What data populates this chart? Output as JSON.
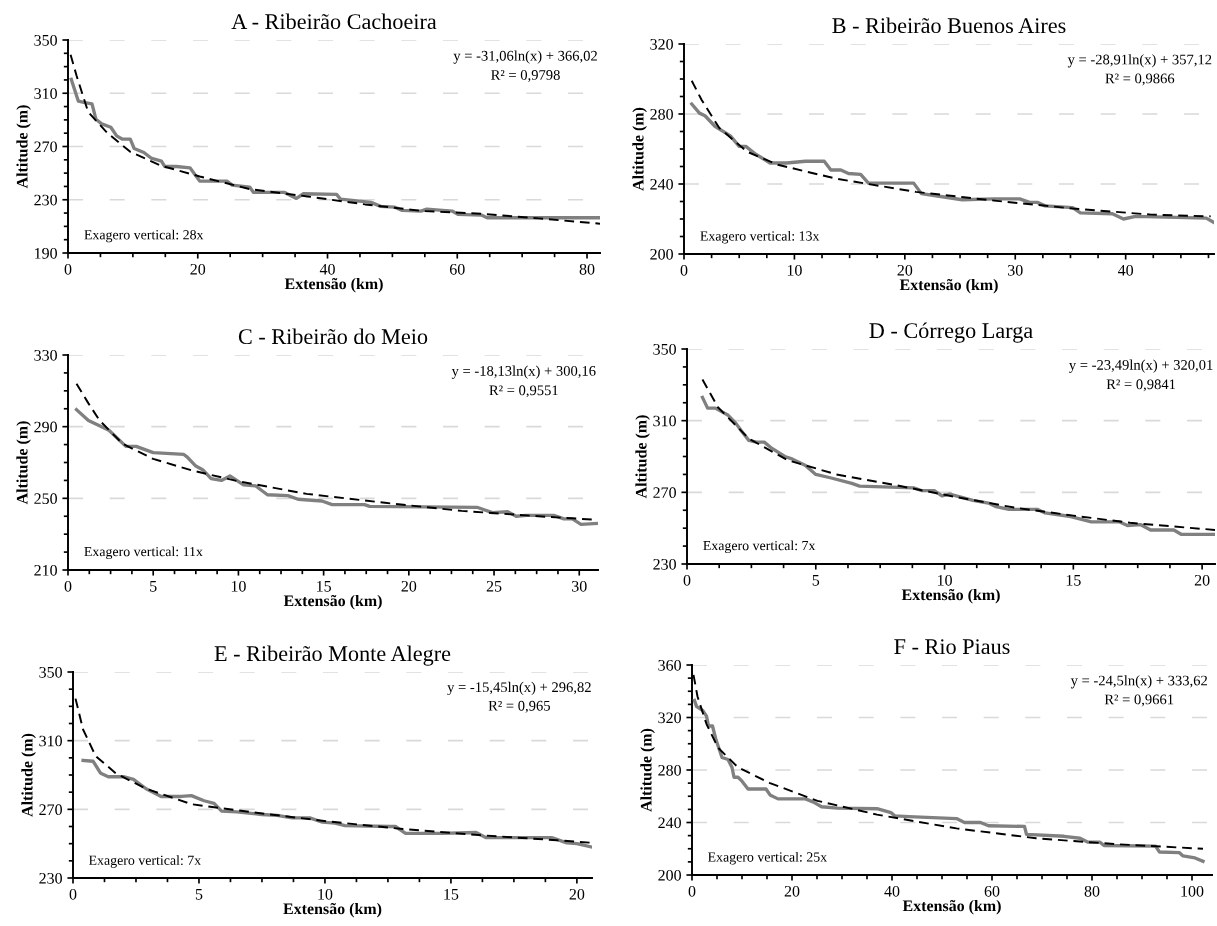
{
  "chart_data": [
    {
      "type": "line",
      "title": "A - Ribeirão Cachoeira",
      "xlabel": "Extensão (km)",
      "ylabel": "Altitude (m)",
      "xlim": [
        0,
        82
      ],
      "xticks": [
        0,
        20,
        40,
        60,
        80
      ],
      "ylim": [
        190,
        350
      ],
      "yticks": [
        190,
        230,
        270,
        310,
        350
      ],
      "grid": "y",
      "annotations": [
        "y = -31,06ln(x) + 366,02",
        "R² = 0,9798",
        "Exagero vertical: 28x"
      ],
      "series": [
        {
          "color": "#808080",
          "line_style": "solid",
          "x": [
            0.5,
            1.6,
            2.6,
            3.7,
            4.3,
            5.2,
            6.6,
            7.5,
            8.4,
            9.6,
            10.2,
            11.7,
            12.9,
            14.4,
            14.9,
            16.7,
            18.8,
            20.3,
            24.5,
            25.3,
            28,
            28.6,
            33.4,
            35.2,
            36.3,
            41.4,
            42,
            46.7,
            48.2,
            50.3,
            51.5,
            54.4,
            55.3,
            59.2,
            60.1,
            63.7,
            64.6,
            82
          ],
          "values": [
            320.5,
            304,
            303,
            302,
            290.5,
            287,
            284.5,
            278,
            275.5,
            275.5,
            268.5,
            265.5,
            261,
            259,
            255,
            255,
            254,
            244,
            244,
            241,
            239.5,
            235.5,
            235.5,
            231,
            234.5,
            234,
            230.5,
            228,
            225,
            224.5,
            222,
            221.5,
            223,
            221.5,
            219,
            218.5,
            216.5,
            216.5
          ]
        },
        {
          "color": "#000000",
          "line_style": "dashed",
          "x": [
            0.4,
            1.3,
            3.1,
            6.1,
            9.6,
            14.4,
            20.3,
            28,
            36.9,
            45.8,
            54.7,
            63.7,
            72.5,
            82
          ],
          "values": [
            339,
            323.5,
            296,
            280,
            266,
            255.5,
            247.5,
            238,
            232.5,
            226.5,
            221.5,
            219.5,
            216,
            212
          ]
        }
      ]
    },
    {
      "type": "line",
      "title": "B - Ribeirão Buenos Aires",
      "xlabel": "Extensão (km)",
      "ylabel": "Altitude (m)",
      "xlim": [
        0,
        48
      ],
      "xticks": [
        0,
        10,
        20,
        30,
        40
      ],
      "ylim": [
        200,
        320
      ],
      "yticks": [
        200,
        240,
        280,
        320
      ],
      "grid": "y",
      "annotations": [
        "y = -28,91ln(x) + 357,12",
        "R² = 0,9866",
        "Exagero vertical: 13x"
      ],
      "series": [
        {
          "color": "#808080",
          "line_style": "solid",
          "x": [
            0.7,
            1.4,
            1.9,
            2.8,
            4.2,
            5,
            5.6,
            6.5,
            7.8,
            9.3,
            11,
            12.7,
            13.3,
            14.2,
            14.9,
            16,
            16.7,
            20.8,
            21.5,
            23.1,
            25.2,
            28.1,
            30.4,
            31.3,
            32,
            32.7,
            35.2,
            35.9,
            38.8,
            39.8,
            40.9,
            47.3,
            48
          ],
          "values": [
            285.7,
            280.5,
            279,
            273,
            267.5,
            261.5,
            261.5,
            257,
            252,
            252,
            253,
            253,
            248,
            248,
            246,
            245.5,
            240.5,
            240.5,
            234.5,
            233,
            231,
            231.5,
            231.5,
            229.5,
            229.5,
            227.5,
            226.5,
            223.5,
            223,
            220,
            221.5,
            220.5,
            218
          ]
        },
        {
          "color": "#000000",
          "line_style": "dashed",
          "x": [
            0.7,
            1.6,
            3.2,
            5.7,
            8.5,
            13.8,
            21,
            28.1,
            35.2,
            42.3,
            47.7
          ],
          "values": [
            299,
            288,
            272,
            258.5,
            251,
            243,
            235.5,
            230.5,
            226,
            222.5,
            221.5
          ]
        }
      ]
    },
    {
      "type": "line",
      "title": "C - Ribeirão do Meio",
      "xlabel": "Extensão (km)",
      "ylabel": "Altitude (m)",
      "xlim": [
        0,
        31.1
      ],
      "xticks": [
        0,
        5,
        10,
        15,
        20,
        25,
        30
      ],
      "ylim": [
        210,
        330
      ],
      "yticks": [
        210,
        250,
        290,
        330
      ],
      "grid": "y",
      "annotations": [
        "y = -18,13ln(x) + 300,16",
        "R² = 0,9551",
        "Exagero vertical: 11x"
      ],
      "series": [
        {
          "color": "#808080",
          "line_style": "solid",
          "x": [
            0.5,
            1.2,
            1.85,
            2.4,
            3.4,
            4,
            5,
            6.8,
            7,
            7.5,
            7.9,
            8.4,
            9,
            9.5,
            10.3,
            11,
            11.7,
            12.9,
            13.5,
            14.9,
            15.5,
            17.4,
            17.7,
            24,
            24.9,
            25.8,
            26.3,
            26.9,
            28.5,
            29.1,
            29.6,
            30.1,
            31
          ],
          "values": [
            299.5,
            293.5,
            290.5,
            288,
            279,
            279,
            275.5,
            274.5,
            273,
            268,
            266,
            261,
            260,
            262.5,
            257.5,
            257,
            252,
            251.5,
            249.5,
            248.5,
            246.5,
            246.5,
            245.5,
            245,
            242,
            242.5,
            240,
            240.5,
            240.5,
            238.5,
            238.5,
            235.5,
            236
          ]
        },
        {
          "color": "#000000",
          "line_style": "dashed",
          "x": [
            0.5,
            1.2,
            1.85,
            3.2,
            5,
            7.3,
            10,
            14,
            18.6,
            23.1,
            27.6,
            31
          ],
          "values": [
            314,
            303,
            293.5,
            280.5,
            272,
            265.5,
            259.5,
            252.5,
            247.5,
            243,
            240,
            238
          ]
        }
      ]
    },
    {
      "type": "line",
      "title": "D - Córrego Larga",
      "xlabel": "Extensão (km)",
      "ylabel": "Altitude (m)",
      "xlim": [
        0,
        20.5
      ],
      "xticks": [
        0,
        5,
        10,
        15,
        20
      ],
      "ylim": [
        230,
        350
      ],
      "yticks": [
        230,
        270,
        310,
        350
      ],
      "grid": "y",
      "annotations": [
        "y = -23,49ln(x) + 320,01",
        "R² = 0,9841",
        "Exagero vertical: 7x"
      ],
      "series": [
        {
          "color": "#808080",
          "line_style": "solid",
          "x": [
            0.6,
            0.8,
            1.1,
            1.6,
            1.9,
            2.1,
            2.4,
            2.7,
            3,
            3.3,
            3.8,
            4.1,
            4.6,
            5,
            5.6,
            6.4,
            6.7,
            8.8,
            9.1,
            9.6,
            9.9,
            10.2,
            10.7,
            11.1,
            11.7,
            12,
            12.5,
            13.6,
            13.9,
            14.9,
            15.7,
            16.8,
            17.1,
            17.6,
            18,
            18.9,
            19.2,
            20.5
          ],
          "values": [
            323,
            317,
            317,
            313,
            308.5,
            304.5,
            299,
            298,
            298,
            294.5,
            290,
            288.5,
            285,
            280,
            278,
            275,
            273.5,
            272.5,
            271,
            271,
            268,
            269,
            267,
            265.5,
            264,
            262,
            260.5,
            260.5,
            258.5,
            256.5,
            253.5,
            253.5,
            251.5,
            252,
            249,
            249,
            246.5,
            246.5
          ]
        },
        {
          "color": "#000000",
          "line_style": "dashed",
          "x": [
            0.6,
            1.2,
            2.4,
            3.9,
            5.8,
            8.1,
            10.4,
            12.7,
            15,
            17.2,
            20.5
          ],
          "values": [
            333,
            317.5,
            300,
            288,
            280,
            274,
            267.5,
            261.5,
            257,
            253,
            249
          ]
        }
      ]
    },
    {
      "type": "line",
      "title": "E - Ribeirão Monte Alegre",
      "xlabel": "Extensão (km)",
      "ylabel": "Altitude (m)",
      "xlim": [
        0,
        20.6
      ],
      "xticks": [
        0,
        5,
        10,
        15,
        20
      ],
      "ylim": [
        230,
        350
      ],
      "yticks": [
        230,
        270,
        310,
        350
      ],
      "grid": "y",
      "annotations": [
        "y = -15,45ln(x) + 296,82",
        "R² = 0,965",
        "Exagero vertical: 7x"
      ],
      "series": [
        {
          "color": "#808080",
          "line_style": "solid",
          "x": [
            0.4,
            0.8,
            1.1,
            1.4,
            2,
            2.4,
            2.9,
            3.5,
            4.3,
            4.7,
            5.2,
            5.6,
            5.9,
            6.5,
            7.5,
            8.1,
            8.7,
            9.4,
            9.9,
            10.4,
            10.8,
            12.6,
            12.8,
            13.2,
            14.6,
            16,
            16.4,
            19,
            19.6,
            20,
            20.6
          ],
          "values": [
            298.5,
            298,
            291,
            289,
            289,
            287.5,
            282,
            277.5,
            277.5,
            278,
            275,
            273.5,
            269,
            268.5,
            267,
            266.5,
            265,
            265,
            262.5,
            262,
            260.5,
            260,
            260,
            256,
            256,
            256.5,
            253.5,
            253.5,
            250.5,
            250,
            248
          ]
        },
        {
          "color": "#000000",
          "line_style": "dashed",
          "x": [
            0.1,
            0.4,
            0.9,
            1.7,
            2.9,
            4.7,
            7,
            10.1,
            13.1,
            16.1,
            19.2,
            20.6
          ],
          "values": [
            334.5,
            316.5,
            301,
            291,
            282,
            273,
            268.5,
            263,
            258.5,
            255,
            252,
            250.5
          ]
        }
      ]
    },
    {
      "type": "line",
      "title": "F - Rio Piaus",
      "xlabel": "Extensão (km)",
      "ylabel": "Altitude (m)",
      "xlim": [
        0,
        104
      ],
      "xticks": [
        0,
        20,
        40,
        60,
        80,
        100
      ],
      "ylim": [
        200,
        360
      ],
      "yticks": [
        200,
        240,
        280,
        320,
        360
      ],
      "grid": "y",
      "annotations": [
        "y = -24,5ln(x) + 333,62",
        "R² = 0,9661",
        "Exagero vertical: 25x"
      ],
      "series": [
        {
          "color": "#808080",
          "line_style": "solid",
          "x": [
            0.5,
            0.9,
            2.1,
            2.9,
            3.3,
            4.1,
            4.8,
            6,
            7.2,
            8,
            8.4,
            9.2,
            10,
            11.2,
            14.8,
            15.6,
            17.2,
            22.7,
            24.3,
            25.9,
            29.1,
            37,
            39.8,
            40.6,
            43.4,
            52.9,
            54.5,
            57.7,
            59.3,
            66.5,
            66.9,
            74.4,
            77.6,
            79.2,
            81.6,
            82.4,
            92.7,
            93.5,
            97.5,
            98.2,
            100.6,
            102.2
          ],
          "values": [
            333,
            328.5,
            325.5,
            321,
            313.5,
            313.5,
            303,
            289.5,
            288,
            282,
            274.5,
            274.5,
            271.5,
            265.5,
            265.5,
            261,
            258,
            258,
            255.5,
            252,
            251,
            250.5,
            247.5,
            245,
            244.5,
            243,
            240,
            240,
            237.5,
            237,
            231,
            229.5,
            228,
            225,
            225,
            222.5,
            222,
            217.5,
            217,
            214.5,
            213,
            210.5
          ]
        },
        {
          "color": "#000000",
          "line_style": "dashed",
          "x": [
            0.3,
            1.1,
            2.9,
            5.2,
            9.2,
            15.6,
            25.1,
            37,
            52.9,
            68.8,
            84.7,
            102.2
          ],
          "values": [
            352.5,
            336,
            315,
            297,
            282,
            270,
            256.5,
            246,
            235.5,
            228,
            223.5,
            220
          ]
        }
      ]
    }
  ]
}
